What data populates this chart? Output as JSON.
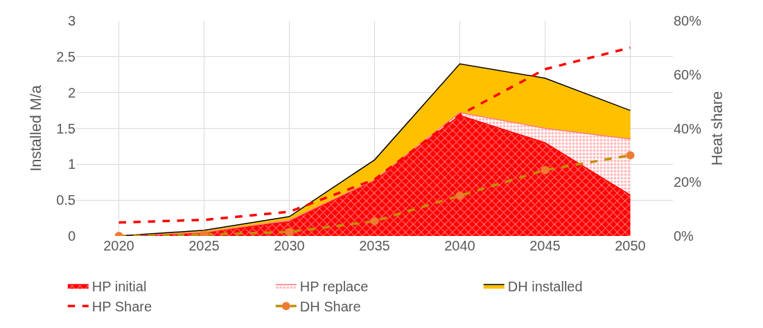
{
  "chart_data": {
    "type": "area",
    "categories": [
      "2020",
      "2025",
      "2030",
      "2035",
      "2040",
      "2045",
      "2050"
    ],
    "ylabel": "Installed M/a",
    "y2label": "Heat share",
    "ylim": [
      0,
      3
    ],
    "yticks": [
      0,
      0.5,
      1,
      1.5,
      2,
      2.5,
      3
    ],
    "y2lim": [
      0,
      80
    ],
    "y2ticks": [
      {
        "value": 0,
        "label": "0%"
      },
      {
        "value": 20,
        "label": "20%"
      },
      {
        "value": 40,
        "label": "40%"
      },
      {
        "value": 60,
        "label": "60%"
      },
      {
        "value": 80,
        "label": "80%"
      }
    ],
    "stacked": true,
    "grid": true,
    "legend": "bottom",
    "series": [
      {
        "name": "HP initial",
        "color": "#ff0000",
        "values": [
          0,
          0.05,
          0.2,
          0.78,
          1.68,
          1.3,
          0.57
        ]
      },
      {
        "name": "HP replace",
        "color": "#ff7c80",
        "values": [
          0,
          0,
          0.02,
          0,
          0.04,
          0.2,
          0.78
        ]
      },
      {
        "name": "DH installed",
        "color": "#ffc000",
        "values": [
          0,
          0.03,
          0.05,
          0.28,
          0.68,
          0.7,
          0.4
        ]
      },
      {
        "name": "HP Share",
        "type": "line",
        "axis": "y2",
        "color": "#ff0000",
        "line_style": "dashed",
        "marker": "none",
        "values": [
          5,
          6,
          9,
          21,
          45,
          62,
          70
        ]
      },
      {
        "name": "DH Share",
        "type": "line",
        "axis": "y2",
        "color": "#bf9000",
        "line_style": "dashed",
        "marker": "circle",
        "values": [
          0,
          0.5,
          1.5,
          5.5,
          15,
          24.5,
          30
        ]
      }
    ]
  }
}
